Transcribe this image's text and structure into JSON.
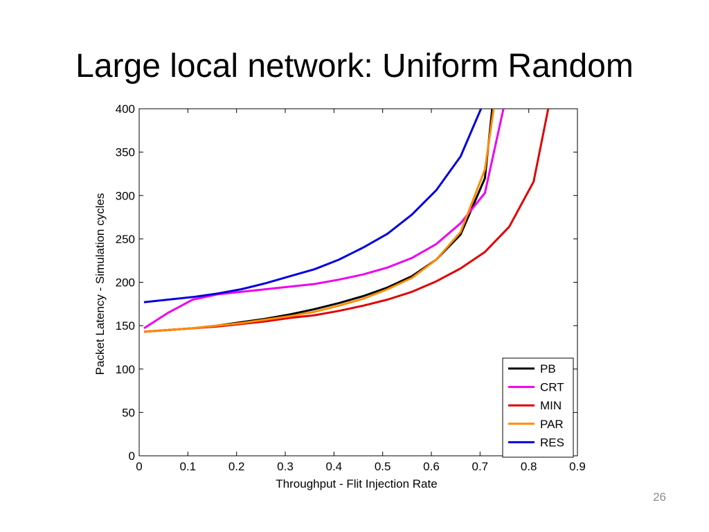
{
  "slide": {
    "title": "Large local network: Uniform Random",
    "page_number": "26"
  },
  "chart_data": {
    "type": "line",
    "xlabel": "Throughput - Flit Injection Rate",
    "ylabel": "Packet Latency - Simulation cycles",
    "xlim": [
      0,
      0.9
    ],
    "ylim": [
      0,
      400
    ],
    "xticks": [
      "0",
      "0.1",
      "0.2",
      "0.3",
      "0.4",
      "0.5",
      "0.6",
      "0.7",
      "0.8",
      "0.9"
    ],
    "yticks": [
      "0",
      "50",
      "100",
      "150",
      "200",
      "250",
      "300",
      "350",
      "400"
    ],
    "grid": false,
    "legend_position": "bottom-right",
    "series": [
      {
        "name": "PB",
        "color": "#000000",
        "x": [
          0.01,
          0.06,
          0.11,
          0.16,
          0.21,
          0.26,
          0.31,
          0.36,
          0.41,
          0.46,
          0.51,
          0.56,
          0.61,
          0.66,
          0.71,
          0.725
        ],
        "y": [
          143,
          145,
          147,
          150,
          154,
          158,
          163,
          169,
          176,
          184,
          194,
          207,
          226,
          255,
          320,
          400
        ]
      },
      {
        "name": "CRT",
        "color": "#ee00ee",
        "x": [
          0.01,
          0.06,
          0.11,
          0.16,
          0.21,
          0.26,
          0.31,
          0.36,
          0.41,
          0.46,
          0.51,
          0.56,
          0.61,
          0.66,
          0.71,
          0.748
        ],
        "y": [
          147,
          165,
          180,
          186,
          189,
          192,
          195,
          198,
          203,
          209,
          217,
          228,
          244,
          268,
          303,
          400
        ]
      },
      {
        "name": "MIN",
        "color": "#e00000",
        "x": [
          0.01,
          0.06,
          0.11,
          0.16,
          0.21,
          0.26,
          0.31,
          0.36,
          0.41,
          0.46,
          0.51,
          0.56,
          0.61,
          0.66,
          0.71,
          0.76,
          0.81,
          0.84
        ],
        "y": [
          143,
          145,
          147,
          149,
          152,
          155,
          159,
          162,
          167,
          173,
          180,
          189,
          201,
          216,
          235,
          264,
          316,
          400
        ]
      },
      {
        "name": "PAR",
        "color": "#ff8c00",
        "x": [
          0.01,
          0.06,
          0.11,
          0.16,
          0.21,
          0.26,
          0.31,
          0.36,
          0.41,
          0.46,
          0.51,
          0.56,
          0.61,
          0.66,
          0.71,
          0.728
        ],
        "y": [
          143,
          145,
          147,
          150,
          153,
          157,
          161,
          166,
          173,
          181,
          192,
          205,
          226,
          258,
          330,
          400
        ]
      },
      {
        "name": "RES",
        "color": "#0000dd",
        "x": [
          0.01,
          0.06,
          0.11,
          0.16,
          0.21,
          0.26,
          0.31,
          0.36,
          0.41,
          0.46,
          0.51,
          0.56,
          0.61,
          0.66,
          0.702
        ],
        "y": [
          177,
          180,
          183,
          187,
          192,
          199,
          207,
          215,
          226,
          240,
          256,
          278,
          306,
          345,
          400
        ]
      }
    ]
  }
}
